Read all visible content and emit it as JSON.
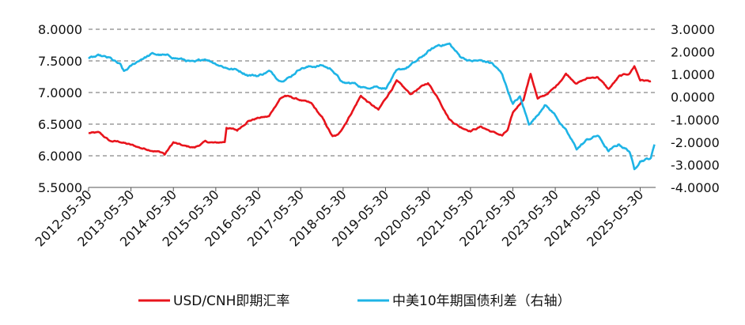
{
  "chart_data": {
    "type": "line",
    "x_tick_labels": [
      "2012-05-30",
      "2013-05-30",
      "2014-05-30",
      "2015-05-30",
      "2016-05-30",
      "2017-05-30",
      "2018-05-30",
      "2019-05-30",
      "2020-05-30",
      "2021-05-30",
      "2022-05-30",
      "2023-05-30",
      "2024-05-30",
      "2025-05-30"
    ],
    "y_left": {
      "ticks": [
        "8.0000",
        "7.5000",
        "7.0000",
        "6.5000",
        "6.0000",
        "5.5000"
      ],
      "min": 5.5,
      "max": 8.0
    },
    "y_right": {
      "ticks": [
        "3.0000",
        "2.0000",
        "1.0000",
        "0.0000",
        "-1.0000",
        "-2.0000",
        "-3.0000",
        "-4.0000"
      ],
      "min": -4.0,
      "max": 3.0
    },
    "grid": "dashed-horizontal",
    "legend_position": "bottom",
    "series": [
      {
        "name": "USD/CNH即期汇率",
        "axis": "left",
        "color": "#e8141c",
        "points": [
          [
            "2012-05-30",
            6.36
          ],
          [
            "2012-08-30",
            6.36
          ],
          [
            "2012-11-30",
            6.23
          ],
          [
            "2013-02-28",
            6.22
          ],
          [
            "2013-05-30",
            6.17
          ],
          [
            "2013-08-30",
            6.12
          ],
          [
            "2013-11-30",
            6.09
          ],
          [
            "2014-02-28",
            6.05
          ],
          [
            "2014-03-15",
            6.02
          ],
          [
            "2014-05-30",
            6.21
          ],
          [
            "2014-08-30",
            6.15
          ],
          [
            "2014-11-30",
            6.13
          ],
          [
            "2015-02-28",
            6.22
          ],
          [
            "2015-05-30",
            6.2
          ],
          [
            "2015-08-15",
            6.22
          ],
          [
            "2015-08-30",
            6.45
          ],
          [
            "2015-11-30",
            6.4
          ],
          [
            "2016-02-28",
            6.55
          ],
          [
            "2016-05-30",
            6.6
          ],
          [
            "2016-08-30",
            6.62
          ],
          [
            "2016-11-30",
            6.9
          ],
          [
            "2017-01-15",
            6.95
          ],
          [
            "2017-05-30",
            6.88
          ],
          [
            "2017-08-30",
            6.82
          ],
          [
            "2017-11-30",
            6.6
          ],
          [
            "2018-02-28",
            6.3
          ],
          [
            "2018-04-15",
            6.32
          ],
          [
            "2018-06-30",
            6.55
          ],
          [
            "2018-10-30",
            6.95
          ],
          [
            "2018-12-30",
            6.85
          ],
          [
            "2019-03-30",
            6.72
          ],
          [
            "2019-05-30",
            6.9
          ],
          [
            "2019-09-03",
            7.18
          ],
          [
            "2019-12-30",
            6.97
          ],
          [
            "2020-02-28",
            7.05
          ],
          [
            "2020-05-30",
            7.15
          ],
          [
            "2020-08-30",
            6.9
          ],
          [
            "2020-11-30",
            6.58
          ],
          [
            "2021-02-28",
            6.46
          ],
          [
            "2021-05-30",
            6.4
          ],
          [
            "2021-08-30",
            6.46
          ],
          [
            "2021-11-30",
            6.38
          ],
          [
            "2022-02-28",
            6.32
          ],
          [
            "2022-04-15",
            6.4
          ],
          [
            "2022-05-30",
            6.67
          ],
          [
            "2022-08-30",
            6.9
          ],
          [
            "2022-10-30",
            7.3
          ],
          [
            "2022-12-30",
            6.9
          ],
          [
            "2023-02-28",
            6.95
          ],
          [
            "2023-05-30",
            7.08
          ],
          [
            "2023-08-30",
            7.3
          ],
          [
            "2023-11-30",
            7.15
          ],
          [
            "2024-02-28",
            7.22
          ],
          [
            "2024-05-30",
            7.25
          ],
          [
            "2024-08-30",
            7.05
          ],
          [
            "2024-11-30",
            7.25
          ],
          [
            "2025-02-28",
            7.3
          ],
          [
            "2025-04-10",
            7.42
          ],
          [
            "2025-05-30",
            7.2
          ],
          [
            "2025-08-30",
            7.18
          ]
        ]
      },
      {
        "name": "中美10年期国债利差（右轴）",
        "axis": "right",
        "color": "#1eb4e6",
        "points": [
          [
            "2012-05-30",
            1.7
          ],
          [
            "2012-08-30",
            1.8
          ],
          [
            "2012-11-30",
            1.7
          ],
          [
            "2013-02-28",
            1.4
          ],
          [
            "2013-03-30",
            1.1
          ],
          [
            "2013-05-30",
            1.35
          ],
          [
            "2013-08-30",
            1.7
          ],
          [
            "2013-11-30",
            1.9
          ],
          [
            "2014-02-28",
            1.85
          ],
          [
            "2014-05-30",
            1.75
          ],
          [
            "2014-08-30",
            1.65
          ],
          [
            "2014-11-30",
            1.5
          ],
          [
            "2015-02-28",
            1.7
          ],
          [
            "2015-05-30",
            1.5
          ],
          [
            "2015-08-30",
            1.3
          ],
          [
            "2015-11-30",
            1.2
          ],
          [
            "2016-02-28",
            1.0
          ],
          [
            "2016-05-30",
            0.95
          ],
          [
            "2016-08-30",
            1.15
          ],
          [
            "2016-11-30",
            0.75
          ],
          [
            "2017-02-28",
            0.9
          ],
          [
            "2017-05-30",
            1.3
          ],
          [
            "2017-08-30",
            1.35
          ],
          [
            "2017-11-30",
            1.4
          ],
          [
            "2018-02-28",
            1.2
          ],
          [
            "2018-05-30",
            0.6
          ],
          [
            "2018-08-30",
            0.6
          ],
          [
            "2018-11-30",
            0.4
          ],
          [
            "2019-02-28",
            0.5
          ],
          [
            "2019-05-30",
            0.4
          ],
          [
            "2019-08-30",
            1.1
          ],
          [
            "2019-11-30",
            1.3
          ],
          [
            "2020-02-28",
            1.6
          ],
          [
            "2020-05-30",
            2.0
          ],
          [
            "2020-08-30",
            2.3
          ],
          [
            "2020-11-30",
            2.35
          ],
          [
            "2021-02-28",
            1.8
          ],
          [
            "2021-05-30",
            1.6
          ],
          [
            "2021-08-30",
            1.6
          ],
          [
            "2021-11-30",
            1.5
          ],
          [
            "2022-02-28",
            1.0
          ],
          [
            "2022-04-30",
            0.1
          ],
          [
            "2022-05-30",
            -0.3
          ],
          [
            "2022-07-30",
            0.0
          ],
          [
            "2022-10-15",
            -1.2
          ],
          [
            "2022-12-30",
            -0.8
          ],
          [
            "2023-02-28",
            -0.3
          ],
          [
            "2023-05-30",
            -0.8
          ],
          [
            "2023-08-30",
            -1.5
          ],
          [
            "2023-11-30",
            -2.3
          ],
          [
            "2024-02-28",
            -1.9
          ],
          [
            "2024-05-30",
            -1.7
          ],
          [
            "2024-08-30",
            -2.4
          ],
          [
            "2024-11-30",
            -2.1
          ],
          [
            "2025-02-28",
            -2.4
          ],
          [
            "2025-04-10",
            -3.2
          ],
          [
            "2025-05-30",
            -2.8
          ],
          [
            "2025-08-30",
            -2.7
          ],
          [
            "2025-09-30",
            -2.1
          ]
        ]
      }
    ]
  }
}
